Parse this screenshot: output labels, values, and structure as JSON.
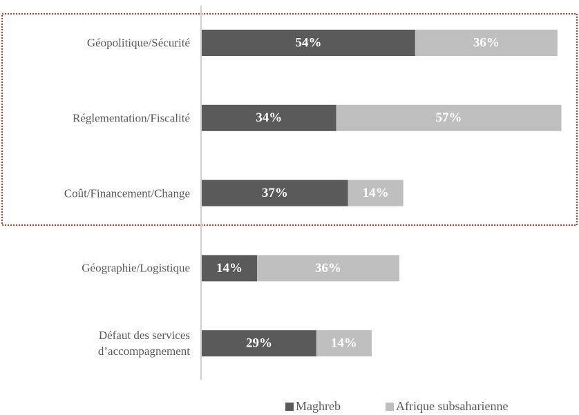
{
  "chart_data": {
    "type": "stacked_barh",
    "categories": [
      "Géopolitique/Sécurité",
      "Réglementation/Fiscalité",
      "Coût/Financement/Change",
      "Géographie/Logistique",
      "Défaut des services d’accompagnement"
    ],
    "series": [
      {
        "name": "Maghreb",
        "color": "#5a5a5a",
        "values": [
          54,
          34,
          37,
          14,
          29
        ],
        "value_labels": [
          "54%",
          "34%",
          "37%",
          "14%",
          "29%"
        ]
      },
      {
        "name": "Afrique subsaharienne",
        "color": "#bfbfbf",
        "values": [
          36,
          57,
          14,
          36,
          14
        ],
        "value_labels": [
          "36%",
          "57%",
          "14%",
          "36%",
          "14%"
        ]
      }
    ]
  }
}
